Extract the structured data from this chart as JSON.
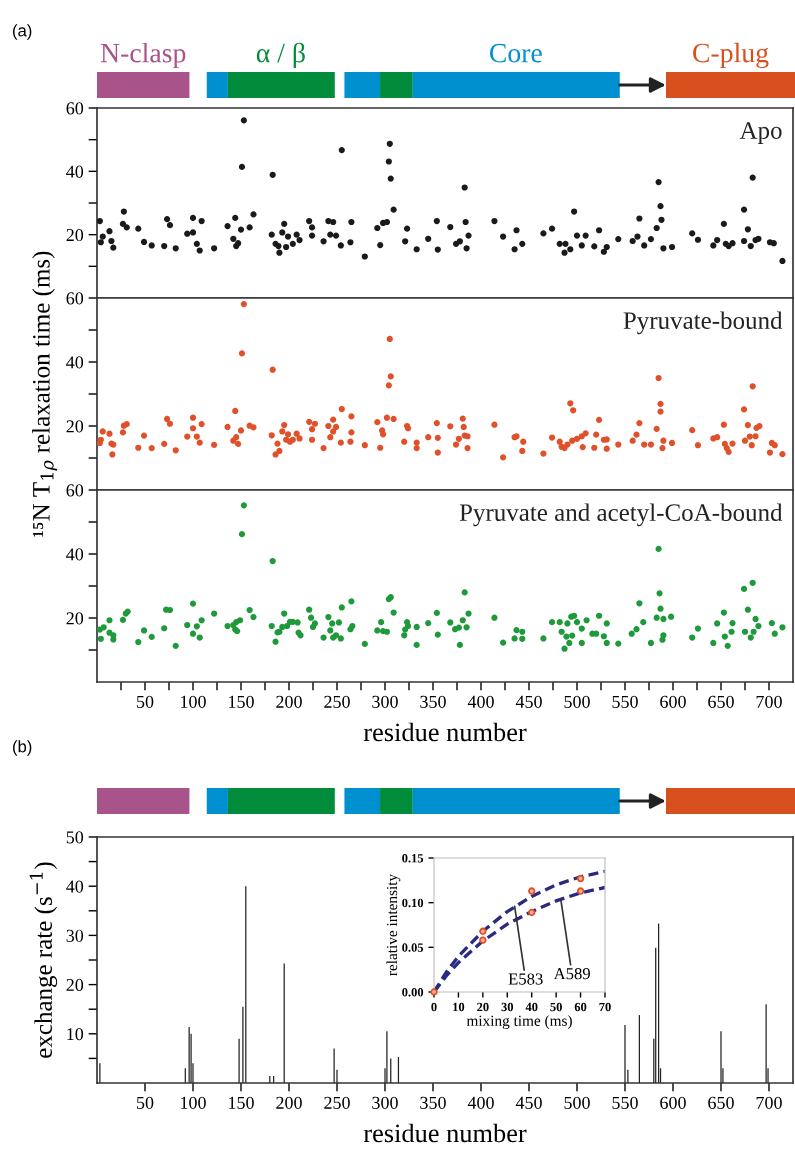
{
  "chart_data": [
    {
      "type": "scatter",
      "title": "Apo",
      "annotations": [
        "(a)",
        "N-clasp",
        "α / β",
        "Core",
        "C-plug"
      ],
      "marker": "circle",
      "tick_labels": "y",
      "xlim": [
        0,
        725
      ],
      "ylim": [
        0,
        60
      ],
      "xticks": [
        {
          "value": 25,
          "label": null
        },
        50,
        {
          "value": 75,
          "label": null
        },
        100,
        {
          "value": 125,
          "label": null
        },
        150,
        {
          "value": 175,
          "label": null
        },
        200,
        {
          "value": 225,
          "label": null
        },
        250,
        {
          "value": 275,
          "label": null
        },
        300,
        {
          "value": 325,
          "label": null
        },
        350,
        {
          "value": 375,
          "label": null
        },
        400,
        {
          "value": 425,
          "label": null
        },
        450,
        {
          "value": 475,
          "label": null
        },
        500,
        {
          "value": 525,
          "label": null
        },
        550,
        {
          "value": 575,
          "label": null
        },
        600,
        {
          "value": 625,
          "label": null
        },
        650,
        {
          "value": 675,
          "label": null
        },
        700
      ],
      "yticks": [
        {
          "value": 10,
          "label": null
        },
        20,
        {
          "value": 30,
          "label": null
        },
        40,
        {
          "value": 50,
          "label": null
        },
        60
      ],
      "series": [
        {
          "color": "#1a1a1a",
          "x": [
            3,
            4,
            6,
            13,
            15,
            17,
            28,
            27,
            31,
            43,
            49,
            57,
            70,
            73,
            76,
            82,
            94,
            100,
            100,
            104,
            107,
            109,
            122,
            136,
            144,
            142,
            145,
            147,
            150,
            151,
            153,
            159,
            163,
            182,
            183,
            186,
            189,
            190,
            193,
            195,
            197,
            199,
            204,
            208,
            211,
            221,
            224,
            224,
            236,
            241,
            243,
            246,
            249,
            254,
            255,
            264,
            265,
            279,
            292,
            295,
            298,
            302,
            304,
            305,
            306,
            309,
            323,
            321,
            333,
            345,
            354,
            355,
            368,
            374,
            378,
            383,
            384,
            387,
            385,
            414,
            423,
            435,
            437,
            443,
            465,
            474,
            482,
            487,
            488,
            493,
            497,
            500,
            505,
            509,
            518,
            523,
            528,
            531,
            543,
            558,
            563,
            565,
            570,
            577,
            583,
            585,
            587,
            588,
            590,
            599,
            620,
            626,
            642,
            646,
            653,
            655,
            658,
            662,
            674,
            674,
            678,
            681,
            683,
            686,
            689,
            701,
            705,
            714
          ],
          "values": [
            24.3,
            17.6,
            19.4,
            21.1,
            18,
            15.9,
            27.3,
            23.4,
            22.3,
            21.9,
            17.7,
            16.6,
            16.4,
            24.9,
            23,
            15.7,
            20.3,
            20.7,
            25.3,
            17.1,
            15,
            24.3,
            15.7,
            22.7,
            25.3,
            18.7,
            16.4,
            17.3,
            21.6,
            41.4,
            56.1,
            22.3,
            26.4,
            20,
            38.9,
            17.1,
            16.4,
            14.3,
            20.7,
            23.4,
            16.1,
            19.4,
            17.1,
            20,
            18.3,
            24.3,
            22.3,
            19.7,
            17.9,
            24.3,
            20,
            24,
            19.7,
            16.6,
            46.7,
            17.6,
            24,
            13.1,
            22.1,
            16.7,
            23.7,
            24,
            43.1,
            48.7,
            37.7,
            27.9,
            21.9,
            17.9,
            15.4,
            18.7,
            24.3,
            15.3,
            22.4,
            17.1,
            17.9,
            34.9,
            24,
            19.7,
            15.7,
            24.3,
            19.4,
            15.4,
            21.4,
            17.1,
            20.4,
            21.9,
            17.1,
            14.3,
            17.1,
            15.4,
            27.3,
            19.7,
            16.6,
            19.7,
            16.3,
            21.4,
            14.6,
            16.1,
            18.6,
            18,
            19.4,
            25.1,
            16.6,
            18.6,
            22.1,
            36.6,
            29,
            24.7,
            15.7,
            16.1,
            20.4,
            18.4,
            16.6,
            18.3,
            23.4,
            17.1,
            16.4,
            17.3,
            27.9,
            18,
            21.7,
            16.4,
            38,
            18.3,
            18.7,
            17.6,
            17.3,
            11.7
          ]
        }
      ]
    },
    {
      "type": "scatter",
      "title": "Pyruvate-bound",
      "ylabel": "¹⁵N T$_{1ρ}$ relaxation time (ms)",
      "marker": "circle",
      "tick_labels": "y",
      "xlim": [
        0,
        725
      ],
      "ylim": [
        0,
        60
      ],
      "xticks": [
        {
          "value": 25,
          "label": null
        },
        50,
        {
          "value": 75,
          "label": null
        },
        100,
        {
          "value": 125,
          "label": null
        },
        150,
        {
          "value": 175,
          "label": null
        },
        200,
        {
          "value": 225,
          "label": null
        },
        250,
        {
          "value": 275,
          "label": null
        },
        300,
        {
          "value": 325,
          "label": null
        },
        350,
        {
          "value": 375,
          "label": null
        },
        400,
        {
          "value": 425,
          "label": null
        },
        450,
        {
          "value": 475,
          "label": null
        },
        500,
        {
          "value": 525,
          "label": null
        },
        550,
        {
          "value": 575,
          "label": null
        },
        600,
        {
          "value": 625,
          "label": null
        },
        650,
        {
          "value": 675,
          "label": null
        },
        700
      ],
      "yticks": [
        {
          "value": 10,
          "label": null
        },
        20,
        {
          "value": 30,
          "label": null
        },
        40,
        {
          "value": 50,
          "label": null
        },
        60
      ],
      "series": [
        {
          "color": "#e0502a",
          "x": [
            3,
            4,
            6,
            13,
            15,
            17,
            16,
            27,
            28,
            31,
            43,
            49,
            57,
            70,
            73,
            76,
            82,
            94,
            100,
            100,
            104,
            107,
            109,
            122,
            136,
            144,
            142,
            145,
            147,
            150,
            151,
            153,
            159,
            163,
            182,
            183,
            186,
            188,
            190,
            193,
            195,
            197,
            199,
            201,
            204,
            208,
            211,
            221,
            224,
            224,
            227,
            236,
            241,
            243,
            246,
            246,
            249,
            254,
            255,
            264,
            265,
            265,
            279,
            292,
            295,
            297,
            298,
            302,
            304,
            306,
            305,
            309,
            320,
            323,
            324,
            333,
            333,
            345,
            354,
            355,
            355,
            368,
            374,
            377,
            381,
            382,
            383,
            386,
            386,
            414,
            423,
            435,
            437,
            443,
            444,
            465,
            474,
            482,
            484,
            487,
            490,
            493,
            496,
            495,
            500,
            505,
            509,
            506,
            520,
            523,
            518,
            528,
            531,
            531,
            543,
            558,
            562,
            565,
            570,
            577,
            583,
            585,
            587,
            587,
            590,
            589,
            599,
            620,
            626,
            642,
            646,
            653,
            654,
            656,
            658,
            662,
            674,
            675,
            678,
            680,
            682,
            683,
            686,
            687,
            690,
            701,
            703,
            706,
            714
          ],
          "values": [
            14.7,
            15.7,
            18.3,
            17.6,
            14.5,
            14.2,
            11.1,
            18,
            20.1,
            20.6,
            13.2,
            17,
            13.1,
            14.4,
            22.2,
            20.7,
            12.4,
            16.7,
            22.6,
            19.3,
            16.7,
            14.8,
            20.6,
            14.1,
            19.7,
            24.7,
            15.4,
            16.5,
            14.4,
            18.6,
            42.7,
            58.1,
            20.1,
            19.6,
            17.1,
            37.6,
            11.1,
            14.5,
            12.2,
            18.3,
            20.3,
            15.7,
            17.4,
            15.1,
            15.7,
            17.6,
            16.1,
            21.3,
            19,
            15.7,
            20.7,
            13.1,
            20,
            16.5,
            22,
            18.3,
            19.7,
            14.8,
            25.3,
            15.1,
            23,
            18,
            14,
            21.2,
            13.2,
            18.6,
            17.4,
            22.6,
            32.7,
            35.5,
            47.2,
            22.2,
            15.1,
            20,
            19.3,
            14.8,
            13.1,
            16.5,
            20.9,
            11.7,
            16.3,
            19.9,
            14.2,
            16,
            22.3,
            19.7,
            17,
            16.8,
            13.1,
            20.4,
            10.2,
            16.5,
            16.8,
            12.2,
            15.1,
            11.4,
            16.4,
            15.1,
            13.5,
            13.1,
            14.2,
            27.1,
            24.9,
            15.4,
            16,
            16.8,
            17.7,
            13.4,
            17.3,
            21.9,
            13.2,
            15.7,
            12.9,
            15.8,
            14.2,
            15.4,
            17.3,
            20.9,
            14.2,
            14.2,
            19.1,
            35,
            26.9,
            24.5,
            15.4,
            13.1,
            14.7,
            18.7,
            14,
            16.1,
            16.5,
            20.4,
            14.4,
            13.1,
            11.9,
            14.5,
            25.2,
            15.4,
            20.3,
            16.7,
            14,
            32.4,
            16.8,
            19.4,
            20,
            11.7,
            14.7,
            14,
            11.2
          ]
        }
      ]
    },
    {
      "type": "scatter",
      "title": "Pyruvate and acetyl-CoA-bound",
      "xlabel": "residue number",
      "marker": "circle",
      "xlim": [
        0,
        725
      ],
      "ylim": [
        0,
        60
      ],
      "xticks": [
        {
          "value": 25,
          "label": null
        },
        50,
        {
          "value": 75,
          "label": null
        },
        100,
        {
          "value": 125,
          "label": null
        },
        150,
        {
          "value": 175,
          "label": null
        },
        200,
        {
          "value": 225,
          "label": null
        },
        250,
        {
          "value": 275,
          "label": null
        },
        300,
        {
          "value": 325,
          "label": null
        },
        350,
        {
          "value": 375,
          "label": null
        },
        400,
        {
          "value": 425,
          "label": null
        },
        450,
        {
          "value": 475,
          "label": null
        },
        500,
        {
          "value": 525,
          "label": null
        },
        550,
        {
          "value": 575,
          "label": null
        },
        600,
        {
          "value": 625,
          "label": null
        },
        650,
        {
          "value": 675,
          "label": null
        },
        700
      ],
      "yticks": [
        {
          "value": 10,
          "label": null
        },
        20,
        {
          "value": 30,
          "label": null
        },
        40,
        {
          "value": 50,
          "label": null
        },
        60
      ],
      "series": [
        {
          "color": "#1f9a3a",
          "x": [
            3,
            4,
            7,
            13,
            13,
            17,
            17,
            27,
            30,
            32,
            43,
            49,
            57,
            70,
            72,
            76,
            82,
            94,
            100,
            100,
            104,
            107,
            109,
            122,
            136,
            142,
            144,
            145,
            146,
            149,
            151,
            153,
            159,
            163,
            182,
            183,
            186,
            188,
            190,
            193,
            195,
            198,
            201,
            204,
            209,
            210,
            212,
            221,
            223,
            225,
            227,
            236,
            241,
            243,
            245,
            246,
            249,
            252,
            254,
            255,
            264,
            266,
            265,
            279,
            292,
            296,
            298,
            302,
            304,
            306,
            309,
            320,
            321,
            323,
            324,
            333,
            333,
            345,
            354,
            355,
            368,
            373,
            377,
            378,
            383,
            381,
            385,
            387,
            414,
            423,
            437,
            435,
            443,
            443,
            465,
            474,
            482,
            484,
            487,
            489,
            490,
            492,
            494,
            495,
            497,
            500,
            505,
            505,
            510,
            516,
            520,
            523,
            528,
            531,
            531,
            543,
            557,
            562,
            565,
            569,
            577,
            583,
            585,
            586,
            587,
            589,
            590,
            590,
            598,
            620,
            626,
            642,
            646,
            653,
            654,
            657,
            662,
            661,
            674,
            675,
            678,
            681,
            683,
            684,
            686,
            689,
            703,
            706,
            714
          ],
          "values": [
            16.4,
            13.5,
            17.1,
            19.3,
            15.4,
            14.6,
            13.3,
            19.4,
            21.4,
            22,
            12.5,
            16.1,
            14.1,
            16.8,
            22.6,
            22.5,
            11.3,
            17.8,
            24.5,
            15.1,
            17.4,
            13.9,
            19.3,
            21.4,
            17.5,
            17.8,
            16.4,
            18.7,
            15.9,
            19.3,
            46.2,
            55.2,
            22.5,
            20.3,
            17.5,
            37.8,
            12.6,
            15.5,
            15.7,
            17.2,
            21.4,
            17.5,
            18.8,
            18.8,
            18.6,
            15.4,
            14.6,
            22.6,
            20.1,
            17.2,
            18.3,
            13.9,
            20.3,
            16.1,
            18.3,
            13.9,
            14.6,
            18.6,
            13.6,
            23.3,
            16.5,
            17.5,
            25.2,
            11.9,
            16.1,
            18.7,
            15.9,
            15.7,
            25.9,
            26.5,
            21.7,
            14.6,
            16.4,
            18.7,
            17.5,
            11.6,
            17.2,
            18.4,
            21.6,
            14.8,
            18.6,
            16.5,
            17,
            11.6,
            28,
            19.3,
            17.1,
            21.4,
            20.1,
            12.3,
            16.2,
            13.6,
            15.7,
            13.5,
            13.6,
            18.7,
            18.7,
            15.7,
            10.4,
            14.2,
            18.3,
            12.2,
            20.4,
            14.5,
            20.7,
            18.7,
            16.7,
            12.2,
            19.3,
            15.1,
            15.1,
            20.7,
            14.3,
            12.2,
            18.3,
            12,
            15.1,
            16.5,
            24.6,
            18.7,
            12.2,
            20.1,
            41.6,
            27.7,
            22.9,
            13.2,
            14.6,
            19.7,
            20.4,
            13.9,
            16.7,
            12.2,
            18.3,
            21.7,
            14.2,
            11.3,
            18.4,
            15.7,
            29.1,
            15.7,
            22.6,
            13.9,
            31,
            15.7,
            19.7,
            17.5,
            18.4,
            15.1,
            17.1
          ]
        }
      ]
    },
    {
      "type": "bar",
      "annotations": [
        "(b)"
      ],
      "xlabel": "residue number",
      "ylabel": "exchange rate (s$^{−1}$)",
      "xlim": [
        0,
        725
      ],
      "ylim": [
        0,
        50
      ],
      "xticks": [
        50,
        100,
        150,
        200,
        250,
        300,
        350,
        400,
        450,
        500,
        550,
        600,
        650,
        700
      ],
      "yticks": [
        {
          "value": 5,
          "label": null
        },
        10,
        {
          "value": 15,
          "label": null
        },
        20,
        {
          "value": 25,
          "label": null
        },
        30,
        {
          "value": 35,
          "label": null
        },
        40,
        {
          "value": 45,
          "label": null
        },
        50
      ],
      "x": [
        3,
        92,
        96,
        98,
        100,
        148,
        152,
        155,
        180,
        184,
        195,
        247,
        250,
        300,
        302,
        306,
        314,
        550,
        553,
        565,
        580,
        582,
        585,
        587,
        650,
        652,
        697,
        699
      ],
      "values": [
        4,
        3,
        11.4,
        10,
        4,
        9,
        15.5,
        40,
        1.4,
        1.4,
        24.3,
        7,
        2.7,
        3,
        10.5,
        5,
        5.3,
        11.8,
        2.7,
        13.8,
        9,
        27.5,
        32.4,
        3,
        10.5,
        3,
        16,
        3
      ],
      "color": "#222222"
    },
    {
      "type": "scatter",
      "xlabel": "mixing time (ms)",
      "ylabel": "relative intensity",
      "marker": "circle",
      "xlim": [
        0,
        70
      ],
      "ylim": [
        0,
        0.15
      ],
      "xticks": [
        0,
        10,
        20,
        30,
        40,
        50,
        60,
        70
      ],
      "yticks": [
        {
          "value": 0,
          "label": "0.00"
        },
        {
          "value": 0.05,
          "label": "0.05"
        },
        {
          "value": 0.1,
          "label": "0.10"
        },
        {
          "value": 0.15,
          "label": "0.15"
        }
      ],
      "series": [
        {
          "type": "line",
          "line_style": "dashed",
          "marker": "none",
          "color": "#2b2a80",
          "x": [
            0,
            5,
            10,
            20,
            30,
            40,
            50,
            60,
            70
          ],
          "values": [
            0,
            0.022,
            0.04,
            0.068,
            0.09,
            0.107,
            0.12,
            0.129,
            0.135
          ]
        },
        {
          "type": "line",
          "line_style": "dashed",
          "marker": "none",
          "color": "#2b2a80",
          "x": [
            0,
            5,
            10,
            20,
            30,
            40,
            50,
            60,
            70
          ],
          "values": [
            0,
            0.018,
            0.033,
            0.057,
            0.076,
            0.09,
            0.102,
            0.111,
            0.117
          ]
        },
        {
          "color": "#e0502a",
          "x": [
            0,
            20,
            40,
            60,
            20,
            40,
            60
          ],
          "values": [
            0,
            0.068,
            0.113,
            0.127,
            0.058,
            0.089,
            0.113
          ]
        }
      ],
      "annotations": [
        {
          "text": "E583",
          "x": 33,
          "y": 0.096
        },
        {
          "text": "A589",
          "x": 52,
          "y": 0.102
        }
      ]
    }
  ]
}
